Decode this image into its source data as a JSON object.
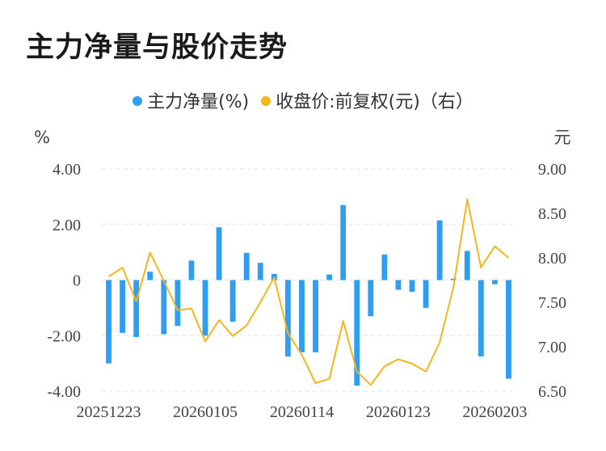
{
  "title": "主力净量与股价走势",
  "legend": {
    "net": "主力净量(%)",
    "price": "收盘价:前复权(元)（右）"
  },
  "colors": {
    "bar": "#2f9df0",
    "line": "#f5b51b",
    "grid": "#e3e3e3"
  },
  "chart_data": {
    "type": "bar+line",
    "title": "主力净量与股价走势",
    "left_axis": {
      "unit": "%",
      "ticks": [
        "4.00",
        "2.00",
        "0",
        "-2.00",
        "-4.00"
      ],
      "range": [
        -4,
        4
      ]
    },
    "right_axis": {
      "unit": "元",
      "ticks": [
        "9.00",
        "8.50",
        "8.00",
        "7.50",
        "7.00",
        "6.50"
      ],
      "range": [
        6.5,
        9.0
      ]
    },
    "x_tick_labels": [
      "20251223",
      "20260105",
      "20260114",
      "20260123",
      "20260203"
    ],
    "x_tick_indices": [
      0,
      7,
      14,
      21,
      28
    ],
    "series": [
      {
        "name": "主力净量(%)",
        "type": "bar",
        "values": [
          -3.0,
          -1.9,
          -2.05,
          0.3,
          -1.95,
          -1.65,
          0.7,
          -2.0,
          1.9,
          -1.5,
          0.98,
          0.62,
          0.22,
          -2.75,
          -2.6,
          -2.6,
          0.2,
          2.7,
          -3.8,
          -1.3,
          0.92,
          -0.35,
          -0.42,
          -1.0,
          2.15,
          0.05,
          1.05,
          -2.75,
          -0.15,
          -3.55
        ]
      },
      {
        "name": "收盘价:前复权(元)（右）",
        "type": "line",
        "values": [
          7.79,
          7.89,
          7.51,
          8.06,
          7.74,
          7.41,
          7.43,
          7.06,
          7.3,
          7.12,
          7.24,
          7.5,
          7.78,
          7.15,
          6.91,
          6.59,
          6.64,
          7.29,
          6.72,
          6.57,
          6.78,
          6.86,
          6.81,
          6.72,
          7.05,
          7.67,
          8.66,
          7.89,
          8.13,
          8.0
        ]
      }
    ]
  }
}
